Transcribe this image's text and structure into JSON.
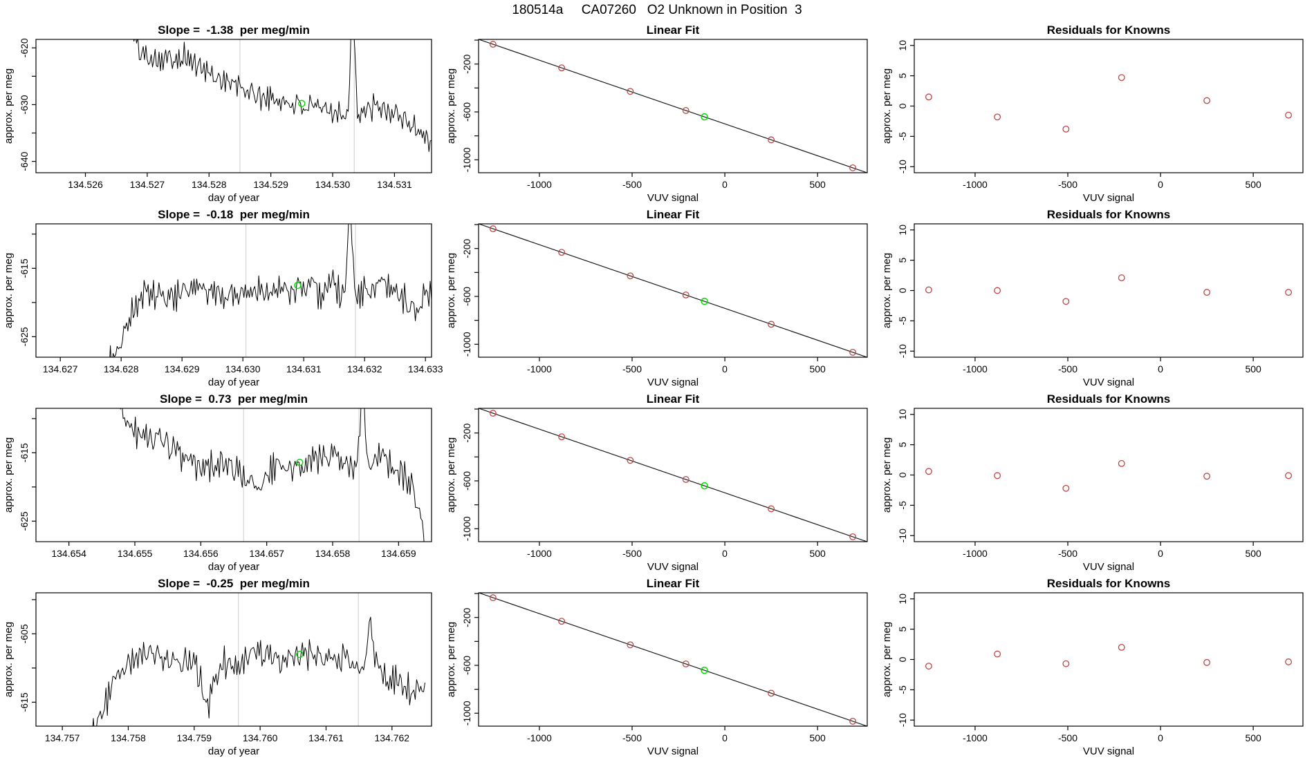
{
  "header": {
    "title": "180514a     CA07260   O2 Unknown in Position  3"
  },
  "colors": {
    "known_point": "#bf4545",
    "marked_point": "#00dd00",
    "trace": "#000000",
    "fit_line": "#1a1a1a",
    "event_line": "#d8d8d8",
    "box": "#000000"
  },
  "chart_data": {
    "rows": [
      {
        "timeseries": {
          "type": "line",
          "title": "Slope =  -1.38  per meg/min",
          "xlabel": "day of year",
          "ylabel": "approx. per meg",
          "xlim": [
            134.5252,
            134.5316
          ],
          "xticks": [
            134.526,
            134.527,
            134.528,
            134.529,
            134.53,
            134.531
          ],
          "xtick_decimals": 3,
          "ylim": [
            -642,
            -618.5
          ],
          "yticks": [
            -640,
            -635,
            -630,
            -625,
            -620
          ],
          "ytick_labels": [
            -640,
            -630,
            -620
          ],
          "event_lines": [
            134.5285,
            134.53035
          ],
          "marked_point": [
            134.5295,
            -629.8
          ],
          "seed": 101,
          "n_points": 230,
          "noise_amp": 2.0,
          "anchors": [
            [
              134.5267,
              -616
            ],
            [
              134.5269,
              -621
            ],
            [
              134.5272,
              -622
            ],
            [
              134.5276,
              -621.5
            ],
            [
              134.528,
              -624.5
            ],
            [
              134.5284,
              -626.5
            ],
            [
              134.5288,
              -628.5
            ],
            [
              134.5292,
              -629.5
            ],
            [
              134.5296,
              -630.5
            ],
            [
              134.53,
              -631
            ],
            [
              134.53025,
              -632
            ],
            [
              134.53032,
              -610
            ],
            [
              134.5304,
              -632
            ],
            [
              134.5307,
              -630.5
            ],
            [
              134.531,
              -631.5
            ],
            [
              134.5312,
              -633
            ],
            [
              134.5314,
              -634.5
            ],
            [
              134.5316,
              -636.5
            ]
          ]
        },
        "linear_fit": {
          "type": "scatter",
          "title": "Linear Fit",
          "xlabel": "VUV signal",
          "ylabel": "approx. per meg",
          "xlim": [
            -1328,
            768
          ],
          "xticks": [
            -1000,
            -500,
            0,
            500
          ],
          "xtick_decimals": 0,
          "ylim": [
            -1108,
            6
          ],
          "yticks": [
            0,
            -200,
            -400,
            -600,
            -800,
            -1000
          ],
          "ytick_labels": [
            -200,
            -600,
            -1000
          ],
          "fit": {
            "slope": -0.532,
            "intercept": -700
          },
          "points_x": [
            -1250,
            -880,
            -510,
            -210,
            250,
            690
          ],
          "points_y": [
            -35,
            -231.8,
            -428.7,
            -588.3,
            -833,
            -1067.1
          ],
          "marked_point": [
            -110,
            -641.5
          ]
        },
        "residuals": {
          "type": "scatter",
          "title": "Residuals for Knowns",
          "xlabel": "VUV signal",
          "ylabel": "approx. per meg",
          "xlim": [
            -1328,
            768
          ],
          "xticks": [
            -1000,
            -500,
            0,
            500
          ],
          "xtick_decimals": 0,
          "ylim": [
            -11,
            11
          ],
          "yticks": [
            -10,
            -5,
            0,
            5,
            10
          ],
          "ytick_labels": [
            -10,
            -5,
            0,
            5,
            10
          ],
          "points_x": [
            -1250,
            -880,
            -510,
            -210,
            250,
            690
          ],
          "points_y": [
            1.5,
            -1.8,
            -3.8,
            4.7,
            0.9,
            -1.5
          ]
        }
      },
      {
        "timeseries": {
          "type": "line",
          "title": "Slope =  -0.18  per meg/min",
          "xlabel": "day of year",
          "ylabel": "approx. per meg",
          "xlim": [
            134.6266,
            134.6331
          ],
          "xticks": [
            134.627,
            134.628,
            134.629,
            134.63,
            134.631,
            134.632,
            134.633
          ],
          "xtick_decimals": 3,
          "ylim": [
            -628,
            -608.5
          ],
          "yticks": [
            -625,
            -620,
            -615,
            -610
          ],
          "ytick_labels": [
            -625,
            -615
          ],
          "event_lines": [
            134.63005,
            134.63185
          ],
          "marked_point": [
            134.6309,
            -617.5
          ],
          "seed": 202,
          "n_points": 240,
          "noise_amp": 1.9,
          "anchors": [
            [
              134.6278,
              -629
            ],
            [
              134.628,
              -625.5
            ],
            [
              134.6282,
              -621
            ],
            [
              134.6284,
              -618.5
            ],
            [
              134.6288,
              -619.5
            ],
            [
              134.6292,
              -618
            ],
            [
              134.6296,
              -619
            ],
            [
              134.63,
              -618.5
            ],
            [
              134.6304,
              -618
            ],
            [
              134.6308,
              -618.5
            ],
            [
              134.6311,
              -617.5
            ],
            [
              134.6313,
              -619
            ],
            [
              134.63145,
              -616.5
            ],
            [
              134.6316,
              -619
            ],
            [
              134.63168,
              -619
            ],
            [
              134.63175,
              -605
            ],
            [
              134.63185,
              -619
            ],
            [
              134.632,
              -618.5
            ],
            [
              134.6323,
              -617.5
            ],
            [
              134.6326,
              -619
            ],
            [
              134.6328,
              -621.5
            ],
            [
              134.63295,
              -619.5
            ],
            [
              134.6331,
              -618.5
            ]
          ]
        },
        "linear_fit": {
          "type": "scatter",
          "title": "Linear Fit",
          "xlabel": "VUV signal",
          "ylabel": "approx. per meg",
          "xlim": [
            -1328,
            768
          ],
          "xticks": [
            -1000,
            -500,
            0,
            500
          ],
          "xtick_decimals": 0,
          "ylim": [
            -1108,
            6
          ],
          "yticks": [
            0,
            -200,
            -400,
            -600,
            -800,
            -1000
          ],
          "ytick_labels": [
            -200,
            -600,
            -1000
          ],
          "fit": {
            "slope": -0.532,
            "intercept": -700
          },
          "points_x": [
            -1250,
            -880,
            -510,
            -210,
            250,
            690
          ],
          "points_y": [
            -35,
            -231.8,
            -428.7,
            -588.3,
            -833,
            -1067.1
          ],
          "marked_point": [
            -110,
            -641.5
          ]
        },
        "residuals": {
          "type": "scatter",
          "title": "Residuals for Knowns",
          "xlabel": "VUV signal",
          "ylabel": "approx. per meg",
          "xlim": [
            -1328,
            768
          ],
          "xticks": [
            -1000,
            -500,
            0,
            500
          ],
          "xtick_decimals": 0,
          "ylim": [
            -11,
            11
          ],
          "yticks": [
            -10,
            -5,
            0,
            5,
            10
          ],
          "ytick_labels": [
            -10,
            -5,
            0,
            5,
            10
          ],
          "points_x": [
            -1250,
            -880,
            -510,
            -210,
            250,
            690
          ],
          "points_y": [
            0.1,
            0.0,
            -1.8,
            2.1,
            -0.3,
            -0.3
          ]
        }
      },
      {
        "timeseries": {
          "type": "line",
          "title": "Slope =  0.73  per meg/min",
          "xlabel": "day of year",
          "ylabel": "approx. per meg",
          "xlim": [
            134.6535,
            134.6595
          ],
          "xticks": [
            134.654,
            134.655,
            134.656,
            134.657,
            134.658,
            134.659
          ],
          "xtick_decimals": 3,
          "ylim": [
            -628,
            -608.5
          ],
          "yticks": [
            -625,
            -620,
            -615,
            -610
          ],
          "ytick_labels": [
            -625,
            -615
          ],
          "event_lines": [
            134.65665,
            134.6584
          ],
          "marked_point": [
            134.6575,
            -616.4
          ],
          "seed": 303,
          "n_points": 230,
          "noise_amp": 1.9,
          "anchors": [
            [
              134.6547,
              -606
            ],
            [
              134.6549,
              -611
            ],
            [
              134.6551,
              -612.5
            ],
            [
              134.6554,
              -613
            ],
            [
              134.6557,
              -615.5
            ],
            [
              134.656,
              -617.5
            ],
            [
              134.6563,
              -616.5
            ],
            [
              134.6566,
              -618
            ],
            [
              134.6569,
              -620
            ],
            [
              134.6571,
              -617
            ],
            [
              134.6574,
              -617.5
            ],
            [
              134.6577,
              -616
            ],
            [
              134.658,
              -615.5
            ],
            [
              134.65825,
              -617.5
            ],
            [
              134.65838,
              -617
            ],
            [
              134.65845,
              -603
            ],
            [
              134.65852,
              -617
            ],
            [
              134.6587,
              -615.5
            ],
            [
              134.6589,
              -617
            ],
            [
              134.6591,
              -618.5
            ],
            [
              134.65925,
              -621
            ],
            [
              134.65935,
              -625
            ],
            [
              134.6594,
              -629
            ]
          ]
        },
        "linear_fit": {
          "type": "scatter",
          "title": "Linear Fit",
          "xlabel": "VUV signal",
          "ylabel": "approx. per meg",
          "xlim": [
            -1328,
            768
          ],
          "xticks": [
            -1000,
            -500,
            0,
            500
          ],
          "xtick_decimals": 0,
          "ylim": [
            -1108,
            6
          ],
          "yticks": [
            0,
            -200,
            -400,
            -600,
            -800,
            -1000
          ],
          "ytick_labels": [
            -200,
            -600,
            -1000
          ],
          "fit": {
            "slope": -0.532,
            "intercept": -700
          },
          "points_x": [
            -1250,
            -880,
            -510,
            -210,
            250,
            690
          ],
          "points_y": [
            -35,
            -231.8,
            -428.7,
            -588.3,
            -833,
            -1067.1
          ],
          "marked_point": [
            -110,
            -641.5
          ]
        },
        "residuals": {
          "type": "scatter",
          "title": "Residuals for Knowns",
          "xlabel": "VUV signal",
          "ylabel": "approx. per meg",
          "xlim": [
            -1328,
            768
          ],
          "xticks": [
            -1000,
            -500,
            0,
            500
          ],
          "xtick_decimals": 0,
          "ylim": [
            -11,
            11
          ],
          "yticks": [
            -10,
            -5,
            0,
            5,
            10
          ],
          "ytick_labels": [
            -10,
            -5,
            0,
            5,
            10
          ],
          "points_x": [
            -1250,
            -880,
            -510,
            -210,
            250,
            690
          ],
          "points_y": [
            0.6,
            -0.1,
            -2.2,
            1.9,
            -0.2,
            -0.1
          ]
        }
      },
      {
        "timeseries": {
          "type": "line",
          "title": "Slope =  -0.25  per meg/min",
          "xlabel": "day of year",
          "ylabel": "approx. per meg",
          "xlim": [
            134.7566,
            134.7626
          ],
          "xticks": [
            134.757,
            134.758,
            134.759,
            134.76,
            134.761,
            134.762
          ],
          "xtick_decimals": 3,
          "ylim": [
            -618.5,
            -599
          ],
          "yticks": [
            -615,
            -610,
            -605,
            -600
          ],
          "ytick_labels": [
            -615,
            -605
          ],
          "event_lines": [
            134.75967,
            134.76149
          ],
          "marked_point": [
            134.7606,
            -608
          ],
          "seed": 404,
          "n_points": 240,
          "noise_amp": 1.9,
          "anchors": [
            [
              134.75745,
              -619.5
            ],
            [
              134.7576,
              -616.5
            ],
            [
              134.7578,
              -611.5
            ],
            [
              134.7581,
              -608.5
            ],
            [
              134.7584,
              -608
            ],
            [
              134.7587,
              -609.5
            ],
            [
              134.759,
              -608.5
            ],
            [
              134.7592,
              -616
            ],
            [
              134.7594,
              -609
            ],
            [
              134.7597,
              -609.5
            ],
            [
              134.76,
              -607.5
            ],
            [
              134.7603,
              -609
            ],
            [
              134.7606,
              -608.3
            ],
            [
              134.7609,
              -608
            ],
            [
              134.7611,
              -609.5
            ],
            [
              134.7613,
              -608.5
            ],
            [
              134.76145,
              -610.5
            ],
            [
              134.76158,
              -610
            ],
            [
              134.76166,
              -602.8
            ],
            [
              134.76174,
              -609
            ],
            [
              134.7619,
              -611.5
            ],
            [
              134.7621,
              -612
            ],
            [
              134.7623,
              -613.5
            ],
            [
              134.7625,
              -612.5
            ]
          ]
        },
        "linear_fit": {
          "type": "scatter",
          "title": "Linear Fit",
          "xlabel": "VUV signal",
          "ylabel": "approx. per meg",
          "xlim": [
            -1328,
            768
          ],
          "xticks": [
            -1000,
            -500,
            0,
            500
          ],
          "xtick_decimals": 0,
          "ylim": [
            -1108,
            6
          ],
          "yticks": [
            0,
            -200,
            -400,
            -600,
            -800,
            -1000
          ],
          "ytick_labels": [
            -200,
            -600,
            -1000
          ],
          "fit": {
            "slope": -0.532,
            "intercept": -700
          },
          "points_x": [
            -1250,
            -880,
            -510,
            -210,
            250,
            690
          ],
          "points_y": [
            -35,
            -231.8,
            -428.7,
            -588.3,
            -833,
            -1067.1
          ],
          "marked_point": [
            -110,
            -641.5
          ]
        },
        "residuals": {
          "type": "scatter",
          "title": "Residuals for Knowns",
          "xlabel": "VUV signal",
          "ylabel": "approx. per meg",
          "xlim": [
            -1328,
            768
          ],
          "xticks": [
            -1000,
            -500,
            0,
            500
          ],
          "xtick_decimals": 0,
          "ylim": [
            -11,
            11
          ],
          "yticks": [
            -10,
            -5,
            0,
            5,
            10
          ],
          "ytick_labels": [
            -10,
            -5,
            0,
            5,
            10
          ],
          "points_x": [
            -1250,
            -880,
            -510,
            -210,
            250,
            690
          ],
          "points_y": [
            -1.1,
            0.9,
            -0.7,
            2.0,
            -0.5,
            -0.4
          ]
        }
      }
    ]
  }
}
